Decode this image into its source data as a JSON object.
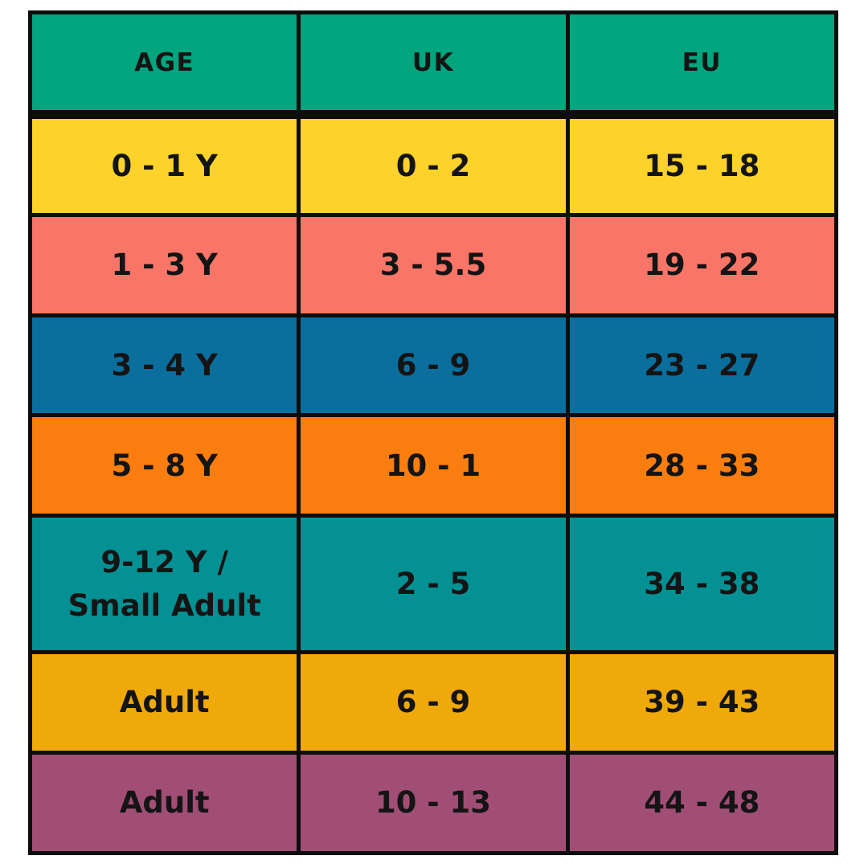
{
  "chart_data": {
    "type": "table",
    "columns": [
      "AGE",
      "UK",
      "EU"
    ],
    "rows": [
      [
        "0 - 1 Y",
        "0 - 2",
        "15 - 18"
      ],
      [
        "1 - 3 Y",
        "3 - 5.5",
        "19 - 22"
      ],
      [
        "3 - 4 Y",
        "6 - 9",
        "23 - 27"
      ],
      [
        "5 - 8 Y",
        "10 - 1",
        "28 - 33"
      ],
      [
        "9-12 Y /\nSmall Adult",
        "2 - 5",
        "34 - 38"
      ],
      [
        "Adult",
        "6 - 9",
        "39 - 43"
      ],
      [
        "Adult",
        "10 - 13",
        "44 - 48"
      ]
    ],
    "header_color": "#02a57d",
    "row_colors": [
      "#fdd32b",
      "#f97568",
      "#0b6f9d",
      "#fa7d0f",
      "#059194",
      "#f0a90b",
      "#a14e76"
    ],
    "border_color": "#0d0d0d",
    "text_color": "#141414",
    "grid": true,
    "legend": false
  }
}
